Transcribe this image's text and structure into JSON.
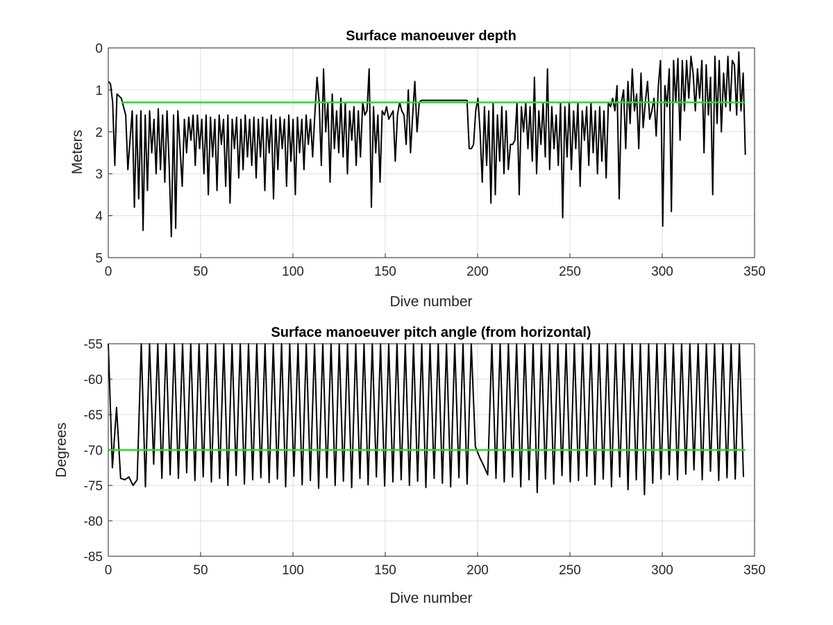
{
  "chart_data": [
    {
      "type": "line",
      "title": "Surface manoeuver depth",
      "xlabel": "Dive number",
      "ylabel": "Meters",
      "xlim": [
        0,
        350
      ],
      "ylim": [
        0,
        5
      ],
      "y_reversed": true,
      "grid": true,
      "xticks": [
        0,
        50,
        100,
        150,
        200,
        250,
        300,
        350
      ],
      "yticks": [
        0,
        1,
        2,
        3,
        4,
        5
      ],
      "colors": {
        "depth": "#000000",
        "reference": "#22dd22"
      },
      "series": [
        {
          "values": [
            0.8,
            0.85,
            1.3,
            2.8,
            1.1,
            1.15,
            1.2,
            1.4,
            1.6,
            2.9,
            2.2,
            1.5,
            3.8,
            1.6,
            3.6,
            1.5,
            4.35,
            1.6,
            3.4,
            1.5,
            2.5,
            1.7,
            3.0,
            1.45,
            2.9,
            1.6,
            3.2,
            1.5,
            2.8,
            4.5,
            1.6,
            4.3,
            1.5,
            2.4,
            3.3,
            1.7,
            2.5,
            1.65,
            2.2,
            1.6,
            2.8,
            1.6,
            2.4,
            1.7,
            3.0,
            1.6,
            3.5,
            1.65,
            2.6,
            1.7,
            3.4,
            1.6,
            2.3,
            1.7,
            3.3,
            1.6,
            3.7,
            1.7,
            2.4,
            1.65,
            3.1,
            1.7,
            2.9,
            1.6,
            2.6,
            1.7,
            2.8,
            1.65,
            3.1,
            1.7,
            2.6,
            1.65,
            3.4,
            1.7,
            2.5,
            1.6,
            3.6,
            1.7,
            2.9,
            1.65,
            2.4,
            1.7,
            3.3,
            1.6,
            2.7,
            1.7,
            3.5,
            1.65,
            2.5,
            1.7,
            2.9,
            1.6,
            2.3,
            1.7,
            2.6,
            1.6,
            0.7,
            1.3,
            2.8,
            0.5,
            2.0,
            1.3,
            3.2,
            1.1,
            2.4,
            1.5,
            2.5,
            1.2,
            2.6,
            1.3,
            3.0,
            1.5,
            2.2,
            1.4,
            2.8,
            1.5,
            2.6,
            1.3,
            1.6,
            1.5,
            0.5,
            3.8,
            1.4,
            2.5,
            1.6,
            3.2,
            1.5,
            1.6,
            1.4,
            1.7,
            1.6,
            1.5,
            2.7,
            1.6,
            1.3,
            1.5,
            1.6,
            2.3,
            1.0,
            2.5,
            1.6,
            0.8,
            2.0,
            1.3,
            1.25,
            1.25,
            1.25,
            1.25,
            1.25,
            1.25,
            1.25,
            1.25,
            1.25,
            1.25,
            1.25,
            1.25,
            1.25,
            1.25,
            1.25,
            1.25,
            1.25,
            1.25,
            1.25,
            1.25,
            1.25,
            1.25,
            2.4,
            2.4,
            2.3,
            1.5,
            1.2,
            2.0,
            3.2,
            1.4,
            2.8,
            1.5,
            3.7,
            1.3,
            3.5,
            1.6,
            2.7,
            1.4,
            3.0,
            1.5,
            2.9,
            2.3,
            2.3,
            2.2,
            1.3,
            3.5,
            1.4,
            2.0,
            1.3,
            2.4,
            1.4,
            2.7,
            0.7,
            3.0,
            1.5,
            2.3,
            1.3,
            2.6,
            0.5,
            2.9,
            1.4,
            2.4,
            1.6,
            2.8,
            1.3,
            4.05,
            1.4,
            2.6,
            1.3,
            2.9,
            1.5,
            2.4,
            1.3,
            3.3,
            1.5,
            2.2,
            1.4,
            2.8,
            1.3,
            2.5,
            1.5,
            3.0,
            1.4,
            2.7,
            1.5,
            3.1,
            1.3,
            1.4,
            1.2,
            1.5,
            0.9,
            3.6,
            1.3,
            1.0,
            2.4,
            0.8,
            1.8,
            0.5,
            1.5,
            1.1,
            2.4,
            0.6,
            1.9,
            1.3,
            0.8,
            1.7,
            1.5,
            1.2,
            2.1,
            0.9,
            0.3,
            4.25,
            0.9,
            1.4,
            0.5,
            3.9,
            0.3,
            1.3,
            0.25,
            2.2,
            0.3,
            1.5,
            0.3,
            1.2,
            0.2,
            0.6,
            1.5,
            0.5,
            1.2,
            0.3,
            2.5,
            0.4,
            1.6,
            0.7,
            3.5,
            0.2,
            1.8,
            0.3,
            2.0,
            0.6,
            1.4,
            0.2,
            1.5,
            0.3,
            0.4,
            1.6,
            0.1,
            1.5,
            0.6,
            2.55
          ],
          "x_start": 0,
          "x_end": 345
        },
        {
          "values": [
            1.3,
            1.3
          ],
          "x": [
            7,
            345
          ]
        }
      ]
    },
    {
      "type": "line",
      "title": "Surface manoeuver pitch angle (from horizontal)",
      "xlabel": "Dive number",
      "ylabel": "Degrees",
      "xlim": [
        0,
        350
      ],
      "ylim": [
        -85,
        -55
      ],
      "grid": true,
      "xticks": [
        0,
        50,
        100,
        150,
        200,
        250,
        300,
        350
      ],
      "yticks": [
        -55,
        -60,
        -65,
        -70,
        -75,
        -80,
        -85
      ],
      "colors": {
        "pitch": "#000000",
        "reference": "#22dd22"
      },
      "series": [
        {
          "values": [
            -55,
            -72.5,
            -64,
            -74,
            -74.2,
            -73.8,
            -75,
            -74.2,
            -55,
            -75.2,
            -55,
            -72,
            -55,
            -74,
            -55,
            -73.5,
            -55,
            -74,
            -55,
            -73.2,
            -55,
            -74.3,
            -55,
            -73.8,
            -55,
            -74.5,
            -55,
            -74,
            -55,
            -75,
            -55,
            -73.6,
            -55,
            -74.8,
            -55,
            -74.2,
            -55,
            -73.9,
            -55,
            -74.6,
            -55,
            -74.1,
            -55,
            -75.2,
            -55,
            -73.7,
            -55,
            -74.9,
            -55,
            -74.3,
            -55,
            -75.4,
            -55,
            -73.9,
            -55,
            -75,
            -55,
            -74.4,
            -55,
            -75.3,
            -55,
            -74,
            -55,
            -74.9,
            -55,
            -73.8,
            -55,
            -75.1,
            -55,
            -74.5,
            -55,
            -74.2,
            -55,
            -75,
            -55,
            -74.4,
            -55,
            -75.3,
            -55,
            -74,
            -55,
            -74.7,
            -55,
            -75.2,
            -55,
            -73.9,
            -55,
            -74.8,
            -55,
            -69.5,
            -71,
            -72.2,
            -73.5,
            -55,
            -74,
            -55,
            -74.5,
            -55,
            -73.8,
            -55,
            -75.2,
            -55,
            -74.2,
            -55,
            -76,
            -55,
            -74.1,
            -55,
            -74.8,
            -55,
            -73.6,
            -55,
            -74.5,
            -55,
            -74.3,
            -55,
            -73.7,
            -55,
            -74.9,
            -55,
            -74.1,
            -55,
            -75.2,
            -55,
            -73.8,
            -55,
            -75.6,
            -55,
            -74.2,
            -55,
            -76.3,
            -55,
            -74.7,
            -55,
            -74.1,
            -55,
            -73.5,
            -55,
            -74.2,
            -55,
            -73.4,
            -55,
            -72.8,
            -55,
            -74.2,
            -55,
            -73,
            -55,
            -74.3,
            -55,
            -73.9,
            -55,
            -74.1,
            -55,
            -73.8
          ],
          "x_start": 0,
          "x_end": 344
        },
        {
          "values": [
            -70,
            -70
          ],
          "x": [
            0,
            345
          ]
        }
      ]
    }
  ]
}
